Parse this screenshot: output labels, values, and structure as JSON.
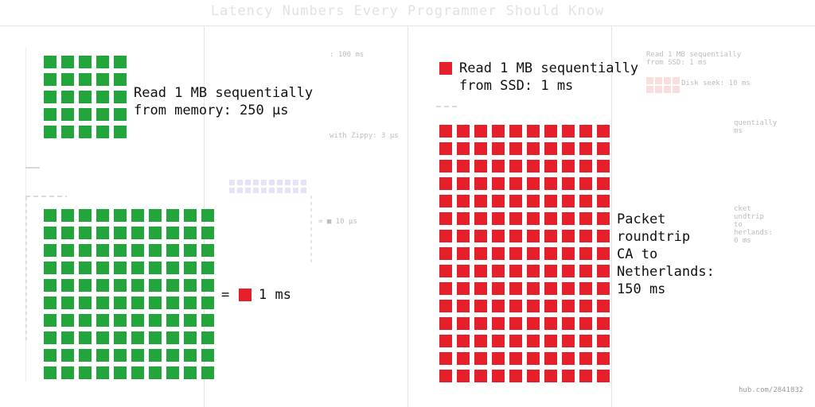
{
  "title": "Latency Numbers Every Programmer Should Know",
  "colors": {
    "memory_green": "#22a63c",
    "ssd_red": "#e5202a",
    "faint_lavender": "#e4e4f4"
  },
  "panels": {
    "left": {
      "top_block": {
        "label": "Read 1 MB sequentially\nfrom memory: 250 µs",
        "rows": 5,
        "cols": 5
      },
      "bottom_block": {
        "rows": 10,
        "cols": 10
      },
      "equals_label": {
        "prefix": "=",
        "value": "1 ms"
      }
    },
    "right": {
      "top_label": "Read 1 MB sequentially\nfrom SSD: 1 ms",
      "packet_block": {
        "label": "Packet\nroundtrip\nCA to\nNetherlands:\n150 ms",
        "rows": 15,
        "cols": 10
      }
    }
  },
  "ghost_texts": {
    "ms100": ": 100 ms",
    "zippy": "with Zippy: 3 µs",
    "us10": "= ■ 10 µs",
    "ssd_small": "Read 1 MB sequentially\nfrom SSD: 1 ms",
    "disk_seek": "Disk seek: 10 ms",
    "sequentially": "quentially\nms",
    "packet_small": "cket\nundtrip\nto\nherlands:\n0 ms",
    "credit": "hub.com/2841832"
  }
}
